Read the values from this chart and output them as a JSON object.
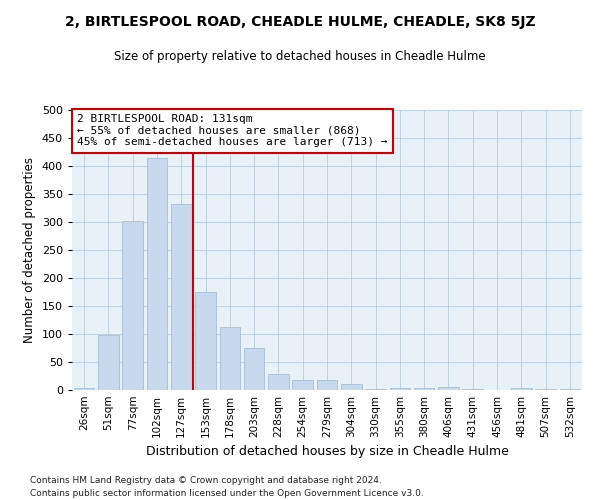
{
  "title": "2, BIRTLESPOOL ROAD, CHEADLE HULME, CHEADLE, SK8 5JZ",
  "subtitle": "Size of property relative to detached houses in Cheadle Hulme",
  "xlabel": "Distribution of detached houses by size in Cheadle Hulme",
  "ylabel": "Number of detached properties",
  "bar_color": "#c8d9ed",
  "bar_edge_color": "#9ab8d4",
  "grid_color": "#aec6d8",
  "background_color": "#e8f0f8",
  "vline_color": "#cc0000",
  "vline_index": 4,
  "annotation_text": "2 BIRTLESPOOL ROAD: 131sqm\n← 55% of detached houses are smaller (868)\n45% of semi-detached houses are larger (713) →",
  "annotation_box_facecolor": "#ffffff",
  "annotation_box_edgecolor": "#cc0000",
  "categories": [
    "26sqm",
    "51sqm",
    "77sqm",
    "102sqm",
    "127sqm",
    "153sqm",
    "178sqm",
    "203sqm",
    "228sqm",
    "254sqm",
    "279sqm",
    "304sqm",
    "330sqm",
    "355sqm",
    "380sqm",
    "406sqm",
    "431sqm",
    "456sqm",
    "481sqm",
    "507sqm",
    "532sqm"
  ],
  "values": [
    3,
    98,
    302,
    415,
    333,
    175,
    112,
    75,
    28,
    18,
    18,
    10,
    2,
    4,
    3,
    6,
    1,
    0,
    3,
    1,
    1
  ],
  "ylim": [
    0,
    500
  ],
  "yticks": [
    0,
    50,
    100,
    150,
    200,
    250,
    300,
    350,
    400,
    450,
    500
  ],
  "footer_line1": "Contains HM Land Registry data © Crown copyright and database right 2024.",
  "footer_line2": "Contains public sector information licensed under the Open Government Licence v3.0."
}
